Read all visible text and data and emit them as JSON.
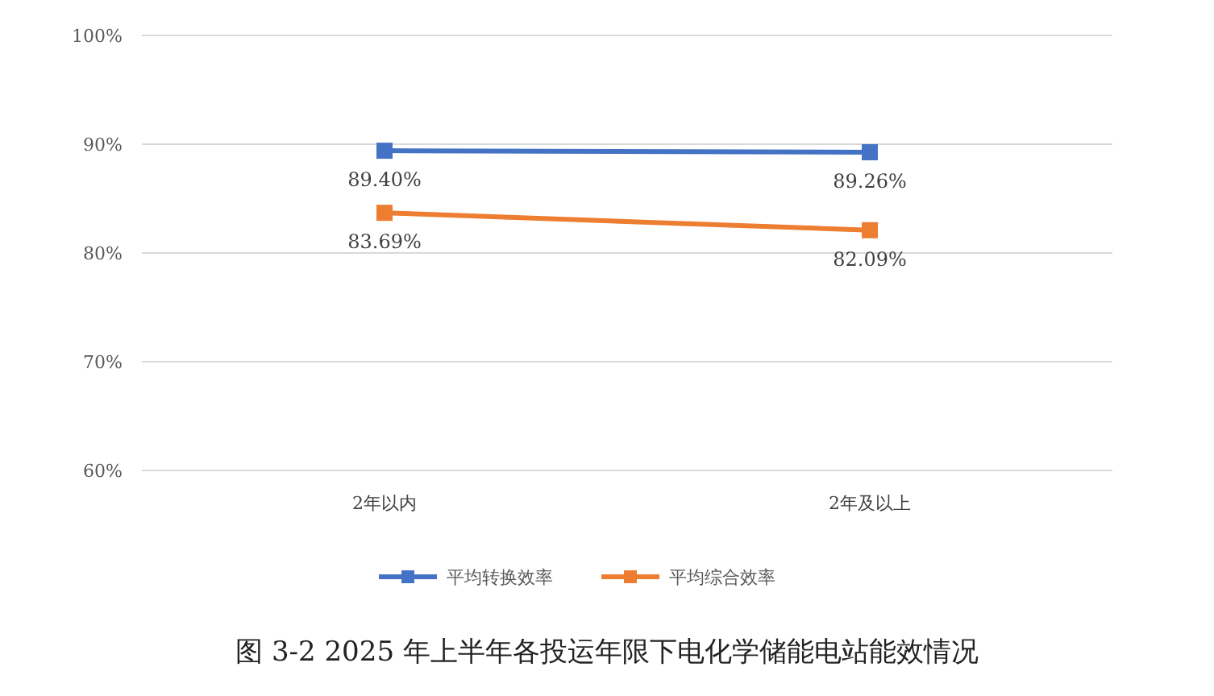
{
  "chart_data": {
    "type": "line",
    "title": "图 3-2 2025 年上半年各投运年限下电化学储能电站能效情况",
    "categories": [
      "2年以内",
      "2年及以上"
    ],
    "series": [
      {
        "name": "平均转换效率",
        "color": "#4472c4",
        "values": [
          89.4,
          89.26
        ],
        "value_labels": [
          "89.40%",
          "89.26%"
        ]
      },
      {
        "name": "平均综合效率",
        "color": "#ed7d31",
        "values": [
          83.69,
          82.09
        ],
        "value_labels": [
          "83.69%",
          "82.09%"
        ]
      }
    ],
    "ylim": [
      60,
      100
    ],
    "yticks": [
      {
        "value": 60,
        "label": "60%"
      },
      {
        "value": 70,
        "label": "70%"
      },
      {
        "value": 80,
        "label": "80%"
      },
      {
        "value": 90,
        "label": "90%"
      },
      {
        "value": 100,
        "label": "100%"
      }
    ],
    "grid": "y",
    "legend": "bottom",
    "marker": "square",
    "line_style": "solid"
  }
}
